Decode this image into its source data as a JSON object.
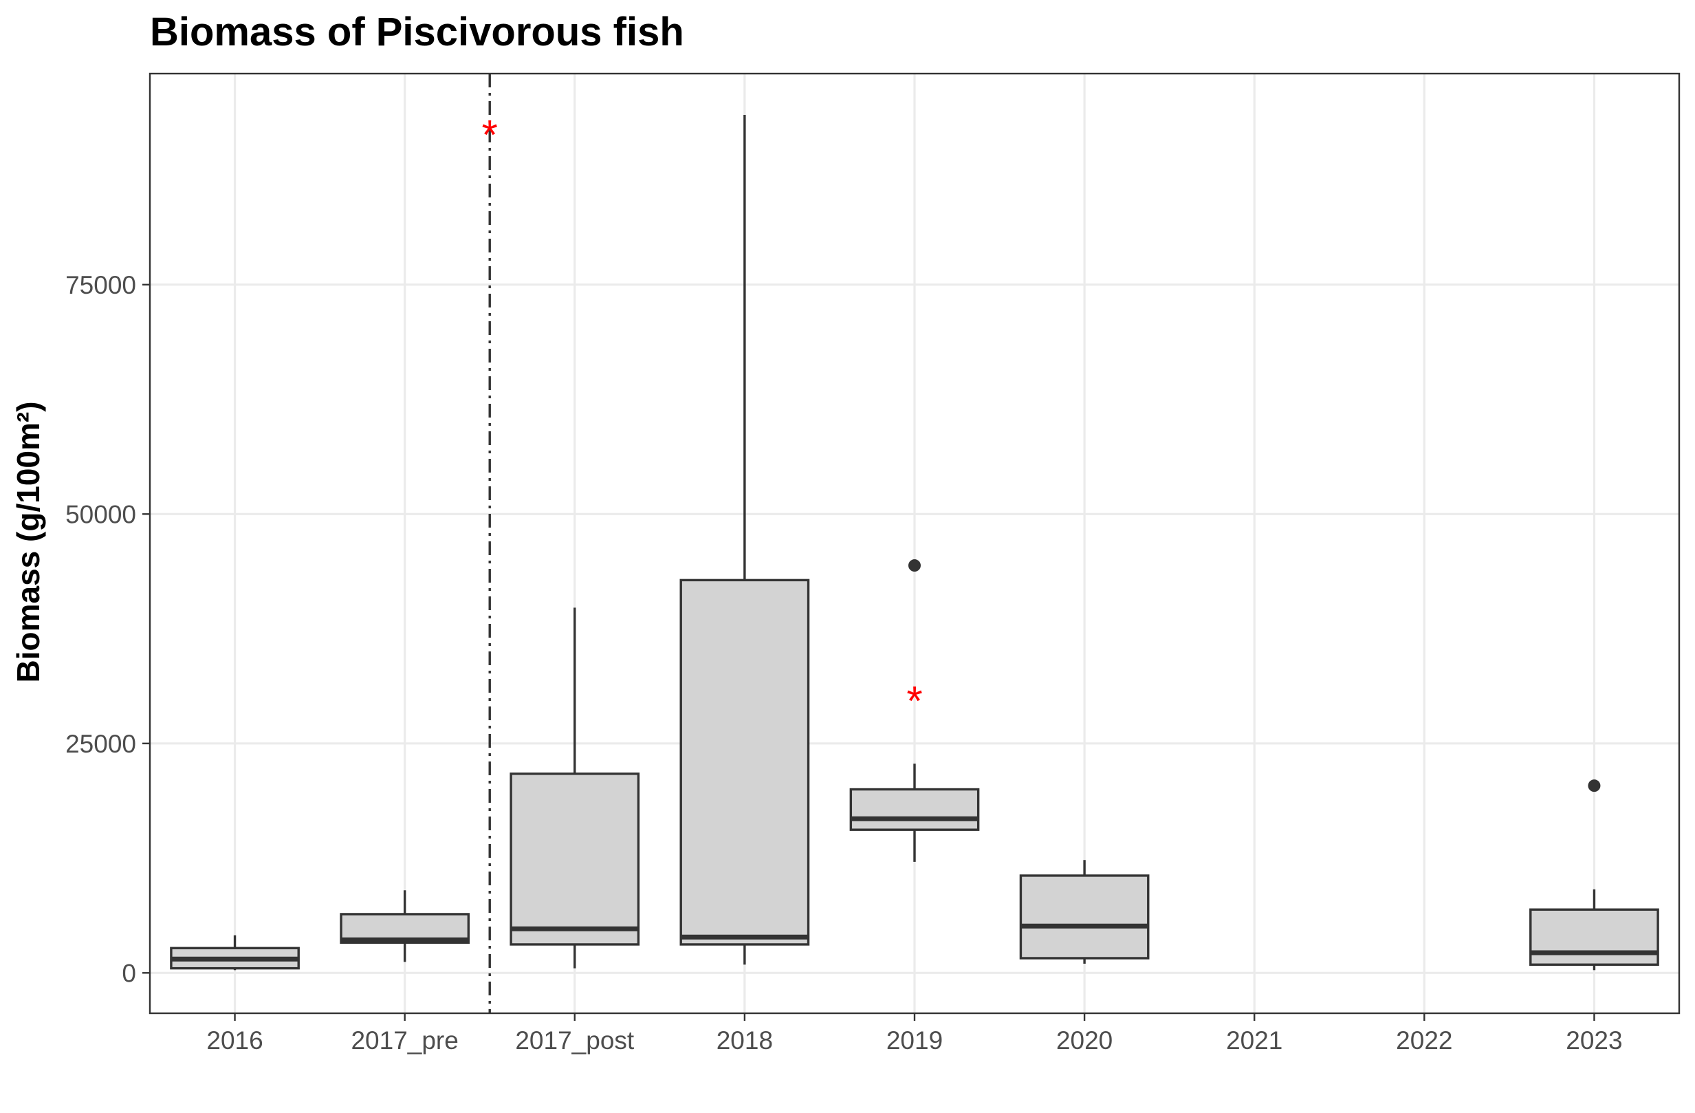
{
  "chart_data": {
    "type": "box",
    "title": "Biomass of Piscivorous fish",
    "xlabel": "",
    "ylabel": "Biomass (g/100m²)",
    "ylim": [
      -4400,
      98000
    ],
    "yticks": [
      0,
      25000,
      50000,
      75000
    ],
    "grid": true,
    "categories": [
      "2016",
      "2017_pre",
      "2017_post",
      "2018",
      "2019",
      "2020",
      "2021",
      "2022",
      "2023"
    ],
    "boxes": [
      {
        "category": "2016",
        "min": 300,
        "q1": 500,
        "median": 1500,
        "q3": 2700,
        "max": 4100,
        "outliers": []
      },
      {
        "category": "2017_pre",
        "min": 1200,
        "q1": 3300,
        "median": 3600,
        "q3": 6400,
        "max": 9000,
        "outliers": []
      },
      {
        "category": "2017_post",
        "min": 500,
        "q1": 3100,
        "median": 4800,
        "q3": 21700,
        "max": 39800,
        "outliers": []
      },
      {
        "category": "2018",
        "min": 900,
        "q1": 3100,
        "median": 3900,
        "q3": 42800,
        "max": 93500,
        "outliers": []
      },
      {
        "category": "2019",
        "min": 12100,
        "q1": 15600,
        "median": 16800,
        "q3": 20000,
        "max": 22800,
        "outliers": [
          44400
        ]
      },
      {
        "category": "2020",
        "min": 1000,
        "q1": 1600,
        "median": 5100,
        "q3": 10600,
        "max": 12300,
        "outliers": []
      },
      {
        "category": "2023",
        "min": 300,
        "q1": 900,
        "median": 2200,
        "q3": 6900,
        "max": 9100,
        "outliers": [
          20400
        ]
      }
    ],
    "annotations": [
      {
        "text": "*",
        "color": "#ff0000",
        "x_between": [
          "2017_pre",
          "2017_post"
        ],
        "y": 92500
      },
      {
        "text": "*",
        "color": "#ff0000",
        "x": "2019",
        "y": 30800
      }
    ],
    "reference_line": {
      "between": [
        "2017_pre",
        "2017_post"
      ],
      "style": "dashed",
      "color": "#333333"
    }
  }
}
